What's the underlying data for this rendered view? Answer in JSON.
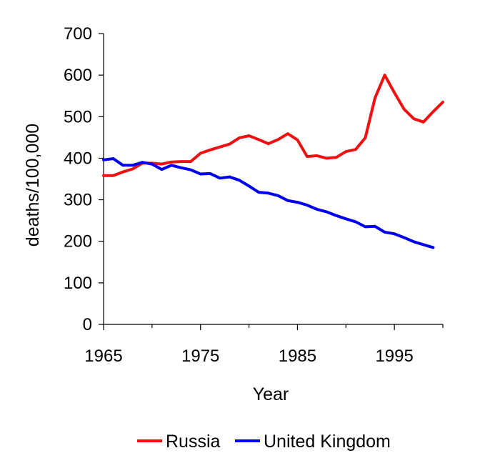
{
  "chart_data": {
    "type": "line",
    "title": "",
    "xlabel": "Year",
    "ylabel": "deaths/100,000",
    "xlim": [
      1965,
      2000
    ],
    "ylim": [
      0,
      700
    ],
    "yticks": [
      0,
      100,
      200,
      300,
      400,
      500,
      600,
      700
    ],
    "xticks": [
      1965,
      1975,
      1985,
      1995
    ],
    "grid": false,
    "legend": "bottom",
    "series": [
      {
        "name": "Russia",
        "color": "#ee1111",
        "x": [
          1965,
          1966,
          1967,
          1968,
          1969,
          1970,
          1971,
          1972,
          1973,
          1974,
          1975,
          1976,
          1977,
          1978,
          1979,
          1980,
          1981,
          1982,
          1983,
          1984,
          1985,
          1986,
          1987,
          1988,
          1989,
          1990,
          1991,
          1992,
          1993,
          1994,
          1995,
          1996,
          1997,
          1998,
          1999,
          2000
        ],
        "y": [
          358,
          358,
          367,
          374,
          388,
          388,
          386,
          391,
          392,
          392,
          412,
          420,
          427,
          434,
          449,
          454,
          445,
          435,
          445,
          459,
          444,
          404,
          406,
          400,
          402,
          416,
          421,
          449,
          545,
          600,
          558,
          518,
          495,
          487,
          512,
          535
        ]
      },
      {
        "name": "United Kingdom",
        "color": "#0000ee",
        "x": [
          1965,
          1966,
          1967,
          1968,
          1969,
          1970,
          1971,
          1972,
          1973,
          1974,
          1975,
          1976,
          1977,
          1978,
          1979,
          1980,
          1981,
          1982,
          1983,
          1984,
          1985,
          1986,
          1987,
          1988,
          1989,
          1990,
          1991,
          1992,
          1993,
          1994,
          1995,
          1996,
          1997,
          1998,
          1999
        ],
        "y": [
          396,
          399,
          383,
          383,
          390,
          386,
          373,
          383,
          377,
          372,
          362,
          363,
          352,
          355,
          347,
          333,
          318,
          316,
          310,
          298,
          294,
          287,
          277,
          271,
          262,
          254,
          247,
          235,
          236,
          222,
          218,
          209,
          199,
          192,
          185
        ]
      }
    ]
  }
}
